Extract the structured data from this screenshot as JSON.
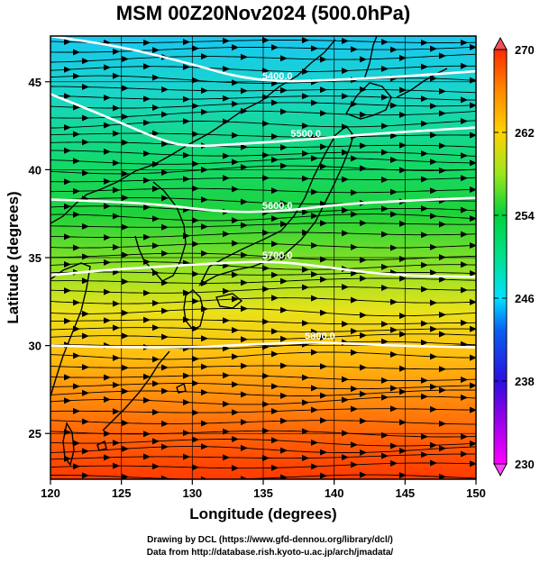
{
  "title": "MSM 00Z20Nov2024 (500.0hPa)",
  "chart_data": {
    "type": "map",
    "xlabel": "Longitude (degrees)",
    "ylabel": "Latitude  (degrees)",
    "xlim": [
      120,
      150
    ],
    "ylim": [
      22.4,
      47.6
    ],
    "x_ticks": [
      120,
      125,
      130,
      135,
      140,
      145,
      150
    ],
    "y_ticks": [
      25,
      30,
      35,
      40,
      45
    ],
    "colorbar": {
      "min": 230,
      "max": 270,
      "ticks": [
        230,
        238,
        246,
        254,
        262,
        270
      ],
      "colors": [
        "#ff00ff",
        "#2b0fe0",
        "#00e0ff",
        "#00d23c",
        "#ffd200",
        "#ff2a00"
      ]
    },
    "contours": [
      {
        "label": "5400.0",
        "points": [
          [
            120,
            47.6
          ],
          [
            125,
            47.0
          ],
          [
            130,
            46.0
          ],
          [
            133,
            45.3
          ],
          [
            136,
            45.0
          ],
          [
            140,
            45.1
          ],
          [
            145,
            45.3
          ],
          [
            150,
            45.6
          ]
        ]
      },
      {
        "label": "5500.0",
        "points": [
          [
            120,
            44.3
          ],
          [
            124,
            43.0
          ],
          [
            128,
            41.6
          ],
          [
            130,
            41.3
          ],
          [
            134,
            41.5
          ],
          [
            138,
            41.7
          ],
          [
            142,
            42.0
          ],
          [
            146,
            42.2
          ],
          [
            150,
            42.4
          ]
        ]
      },
      {
        "label": "5600.0",
        "points": [
          [
            120,
            38.3
          ],
          [
            124,
            38.2
          ],
          [
            128,
            38.0
          ],
          [
            132,
            37.6
          ],
          [
            136,
            37.6
          ],
          [
            140,
            38.0
          ],
          [
            144,
            38.2
          ],
          [
            150,
            38.4
          ]
        ]
      },
      {
        "label": "5700.0",
        "points": [
          [
            120,
            34.0
          ],
          [
            124,
            34.3
          ],
          [
            128,
            34.5
          ],
          [
            132,
            34.7
          ],
          [
            136,
            34.8
          ],
          [
            140,
            34.4
          ],
          [
            144,
            34.0
          ],
          [
            150,
            33.9
          ]
        ]
      },
      {
        "label": "5800.0",
        "points": [
          [
            120,
            30.0
          ],
          [
            125,
            29.9
          ],
          [
            130,
            29.9
          ],
          [
            135,
            30.1
          ],
          [
            139,
            30.2
          ],
          [
            144,
            30.0
          ],
          [
            150,
            29.9
          ]
        ]
      }
    ],
    "streamline_direction": "west-to-east"
  },
  "credits": [
    "Drawing by DCL (https://www.gfd-dennou.org/library/dcl/)",
    "Data from http://database.rish.kyoto-u.ac.jp/arch/jmadata/"
  ]
}
